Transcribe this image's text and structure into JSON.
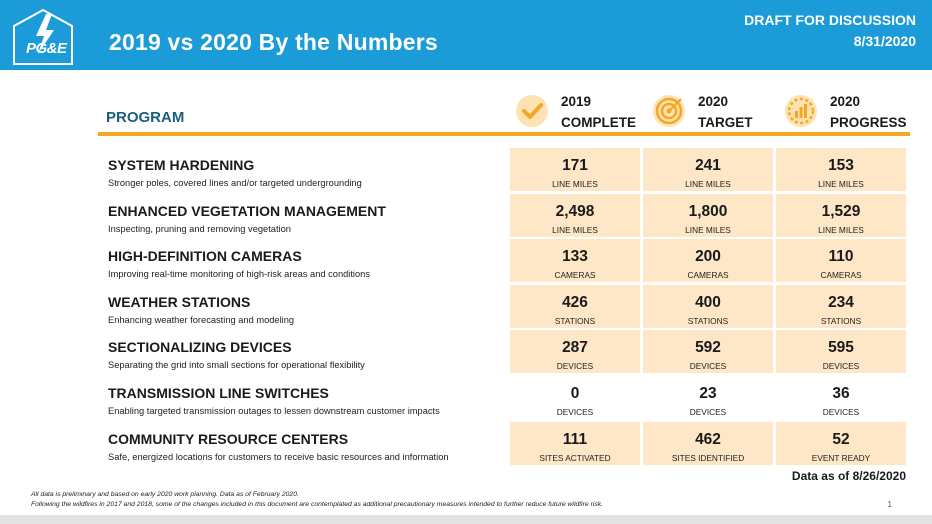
{
  "header": {
    "logo_text": "PG&E",
    "title": "2019 vs 2020 By the Numbers",
    "draft_line1": "DRAFT FOR DISCUSSION",
    "draft_line2": "8/31/2020"
  },
  "table": {
    "program_label": "PROGRAM",
    "columns": [
      {
        "line1": "2019",
        "line2": "COMPLETE",
        "icon": "checkmark-icon"
      },
      {
        "line1": "2020",
        "line2": "TARGET",
        "icon": "target-icon"
      },
      {
        "line1": "2020",
        "line2": "PROGRESS",
        "icon": "progress-chart-icon"
      }
    ],
    "rows": [
      {
        "name": "SYSTEM HARDENING",
        "desc": "Stronger poles, covered lines and/or targeted undergrounding",
        "cells": [
          {
            "num": "171",
            "unit": "LINE MILES"
          },
          {
            "num": "241",
            "unit": "LINE MILES"
          },
          {
            "num": "153",
            "unit": "LINE MILES"
          }
        ]
      },
      {
        "name": "ENHANCED VEGETATION MANAGEMENT",
        "desc": "Inspecting, pruning and removing vegetation",
        "cells": [
          {
            "num": "2,498",
            "unit": "LINE MILES"
          },
          {
            "num": "1,800",
            "unit": "LINE MILES"
          },
          {
            "num": "1,529",
            "unit": "LINE MILES"
          }
        ]
      },
      {
        "name": "HIGH-DEFINITION CAMERAS",
        "desc": "Improving real-time monitoring of high-risk areas and conditions",
        "cells": [
          {
            "num": "133",
            "unit": "CAMERAS"
          },
          {
            "num": "200",
            "unit": "CAMERAS"
          },
          {
            "num": "110",
            "unit": "CAMERAS"
          }
        ]
      },
      {
        "name": "WEATHER STATIONS",
        "desc": "Enhancing weather forecasting and modeling",
        "cells": [
          {
            "num": "426",
            "unit": "STATIONS"
          },
          {
            "num": "400",
            "unit": "STATIONS"
          },
          {
            "num": "234",
            "unit": "STATIONS"
          }
        ]
      },
      {
        "name": "SECTIONALIZING DEVICES",
        "desc": "Separating the grid into small sections for operational flexibility",
        "cells": [
          {
            "num": "287",
            "unit": "DEVICES"
          },
          {
            "num": "592",
            "unit": "DEVICES"
          },
          {
            "num": "595",
            "unit": "DEVICES"
          }
        ]
      },
      {
        "name": "TRANSMISSION LINE SWITCHES",
        "desc": "Enabling targeted transmission outages to lessen downstream customer impacts",
        "cells": [
          {
            "num": "0",
            "unit": "DEVICES"
          },
          {
            "num": "23",
            "unit": "DEVICES"
          },
          {
            "num": "36",
            "unit": "DEVICES"
          }
        ]
      },
      {
        "name": "COMMUNITY RESOURCE CENTERS",
        "desc": "Safe, energized locations for customers to receive basic resources and information",
        "cells": [
          {
            "num": "111",
            "unit": "SITES ACTIVATED"
          },
          {
            "num": "462",
            "unit": "SITES IDENTIFIED"
          },
          {
            "num": "52",
            "unit": "EVENT READY"
          }
        ]
      }
    ]
  },
  "data_as_of": "Data as of 8/26/2020",
  "footnotes": [
    "All data is preliminary and based on early 2020 work planning. Data as of February 2020.",
    "Following the wildfires in 2017 and 2018, some of the changes included in this document are contemplated as additional precautionary measures intended to further reduce future wildfire risk."
  ],
  "page_number": "1",
  "colors": {
    "header_blue": "#1b9bd8",
    "accent_orange": "#f5a623",
    "cell_fill": "#fde7c6",
    "program_label": "#1a5e80"
  }
}
